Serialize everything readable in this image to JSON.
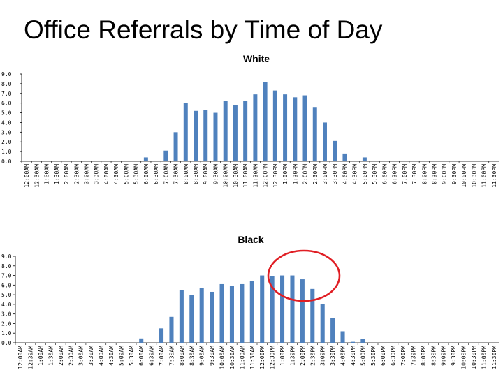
{
  "title": "Office Referrals by Time of Day",
  "colors": {
    "bar": "#4F81BD",
    "axis": "#000000",
    "highlight": "#E01E24"
  },
  "chart_data": [
    {
      "type": "bar",
      "title": "White",
      "ylim": [
        0,
        9
      ],
      "yticks": [
        "0.0",
        "1.0",
        "2.0",
        "3.0",
        "4.0",
        "5.0",
        "6.0",
        "7.0",
        "8.0",
        "9.0"
      ],
      "categories": [
        "12:00AM",
        "12:30AM",
        "1:00AM",
        "1:30AM",
        "2:00AM",
        "2:30AM",
        "3:00AM",
        "3:30AM",
        "4:00AM",
        "4:30AM",
        "5:00AM",
        "5:30AM",
        "6:00AM",
        "6:30AM",
        "7:00AM",
        "7:30AM",
        "8:00AM",
        "8:30AM",
        "9:00AM",
        "9:30AM",
        "10:00AM",
        "10:30AM",
        "11:00AM",
        "11:30AM",
        "12:00PM",
        "12:30PM",
        "1:00PM",
        "1:30PM",
        "2:00PM",
        "2:30PM",
        "3:00PM",
        "3:30PM",
        "4:00PM",
        "4:30PM",
        "5:00PM",
        "5:30PM",
        "6:00PM",
        "6:30PM",
        "7:00PM",
        "7:30PM",
        "8:00PM",
        "8:30PM",
        "9:00PM",
        "9:30PM",
        "10:00PM",
        "10:30PM",
        "11:00PM",
        "11:30PM"
      ],
      "values": [
        0,
        0,
        0,
        0,
        0,
        0,
        0,
        0,
        0,
        0,
        0.05,
        0.05,
        0.4,
        0.05,
        1.1,
        3.0,
        6.0,
        5.2,
        5.3,
        5.0,
        6.2,
        5.8,
        6.2,
        6.9,
        8.2,
        7.3,
        6.9,
        6.6,
        6.8,
        5.6,
        4.0,
        2.1,
        0.8,
        0.05,
        0.4,
        0,
        0,
        0,
        0,
        0,
        0,
        0,
        0,
        0,
        0,
        0,
        0,
        0
      ],
      "grid": false,
      "legend": "none"
    },
    {
      "type": "bar",
      "title": "Black",
      "ylim": [
        0,
        9
      ],
      "yticks": [
        "0.0",
        "1.0",
        "2.0",
        "3.0",
        "4.0",
        "5.0",
        "6.0",
        "7.0",
        "8.0",
        "9.0"
      ],
      "categories": [
        "12:00AM",
        "12:30AM",
        "1:00AM",
        "1:30AM",
        "2:00AM",
        "2:30AM",
        "3:00AM",
        "3:30AM",
        "4:00AM",
        "4:30AM",
        "5:00AM",
        "5:30AM",
        "6:00AM",
        "6:30AM",
        "7:00AM",
        "7:30AM",
        "8:00AM",
        "8:30AM",
        "9:00AM",
        "9:30AM",
        "10:00AM",
        "10:30AM",
        "11:00AM",
        "11:30AM",
        "12:00PM",
        "12:30PM",
        "1:00PM",
        "1:30PM",
        "2:00PM",
        "2:30PM",
        "3:00PM",
        "3:30PM",
        "4:00PM",
        "4:30PM",
        "5:00PM",
        "5:30PM",
        "6:00PM",
        "6:30PM",
        "7:00PM",
        "7:30PM",
        "8:00PM",
        "8:30PM",
        "9:00PM",
        "9:30PM",
        "10:00PM",
        "10:30PM",
        "11:00PM",
        "11:30PM"
      ],
      "values": [
        0,
        0,
        0,
        0,
        0,
        0,
        0,
        0,
        0,
        0,
        0,
        0,
        0.45,
        0,
        1.5,
        2.7,
        5.5,
        5.0,
        5.7,
        5.3,
        6.1,
        5.9,
        6.1,
        6.4,
        7.0,
        6.9,
        7.0,
        7.0,
        6.6,
        5.6,
        4.0,
        2.6,
        1.2,
        0.1,
        0.4,
        0,
        0,
        0,
        0,
        0,
        0,
        0,
        0,
        0,
        0,
        0,
        0,
        0
      ],
      "grid": false,
      "legend": "none",
      "annotation": "red circle around 12:30PM–2:30PM bars"
    }
  ]
}
